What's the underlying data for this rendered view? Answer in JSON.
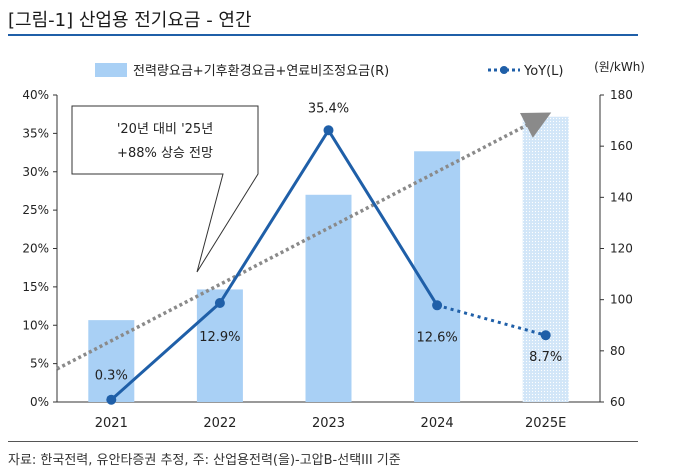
{
  "title": "[그림-1] 산업용 전기요금 - 연간",
  "source": "자료: 한국전력, 유안타증권 추정, 주: 산업용전력(을)-고압B-선택III 기준",
  "right_unit": "(원/kWh)",
  "annotation": [
    "'20년 대비 '25년",
    "+88% 상승 전망"
  ],
  "colors": {
    "bar": "#a9d0f5",
    "bar_est": "#d2e6f8",
    "line": "#1f5fa8",
    "trend": "#8a8a8a"
  },
  "chart_data": {
    "type": "bar",
    "categories": [
      "2021",
      "2022",
      "2023",
      "2024",
      "2025E"
    ],
    "series": [
      {
        "name": "전력량요금+기후환경요금+연료비조정요금(R)",
        "axis": "right",
        "kind": "bar",
        "values": [
          92,
          104,
          141,
          158,
          171.5
        ]
      },
      {
        "name": "YoY(L)",
        "axis": "left",
        "kind": "line",
        "values": [
          0.3,
          12.9,
          35.4,
          12.6,
          8.7
        ],
        "value_labels": [
          "0.3%",
          "12.9%",
          "35.4%",
          "12.6%",
          "8.7%"
        ],
        "estimate_from_index": 3
      }
    ],
    "y_left": {
      "min": 0,
      "max": 40,
      "ticks": [
        0,
        5,
        10,
        15,
        20,
        25,
        30,
        35,
        40
      ],
      "tick_labels": [
        "0%",
        "5%",
        "10%",
        "15%",
        "20%",
        "25%",
        "30%",
        "35%",
        "40%"
      ]
    },
    "y_right": {
      "min": 60,
      "max": 180,
      "ticks": [
        60,
        80,
        100,
        120,
        140,
        160,
        180
      ],
      "tick_labels": [
        "60",
        "80",
        "100",
        "120",
        "140",
        "160",
        "180"
      ]
    },
    "trend": {
      "start_value_left": 4.3,
      "end_value_left": 37.3,
      "arrow": true
    },
    "legend_position": "top"
  }
}
